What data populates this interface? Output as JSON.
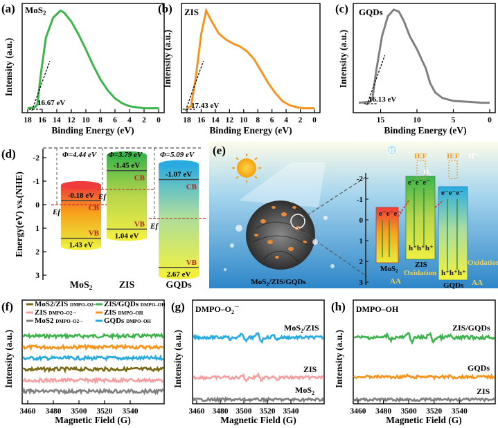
{
  "chart_data": [
    {
      "panel": "a",
      "type": "line",
      "label": "(a)",
      "title": "MoS2",
      "xlabel": "Binding Energy (eV)",
      "ylabel": "Intensity (a.u.)",
      "xlim": [
        18,
        0
      ],
      "ylim": [
        0,
        1
      ],
      "xticks": [
        "18",
        "16",
        "14",
        "12",
        "10",
        "8",
        "6",
        "4",
        "2",
        "0"
      ],
      "annotation": "16.67 eV",
      "cutoff_eV": 16.67,
      "color": "#3cb44b",
      "x": [
        18,
        17,
        16.67,
        16.2,
        15.5,
        14.5,
        13.5,
        13,
        12,
        11,
        10,
        9,
        8,
        7,
        6,
        5,
        4,
        3,
        2,
        1,
        0
      ],
      "y": [
        0.01,
        0.02,
        0.05,
        0.35,
        0.72,
        0.92,
        0.99,
        0.97,
        0.88,
        0.75,
        0.6,
        0.44,
        0.3,
        0.19,
        0.11,
        0.06,
        0.03,
        0.02,
        0.01,
        0.01,
        0.01
      ]
    },
    {
      "panel": "b",
      "type": "line",
      "label": "(b)",
      "title": "ZIS",
      "xlabel": "Binding Energy (eV)",
      "ylabel": "Intensity (a.u.)",
      "xlim": [
        18,
        0
      ],
      "ylim": [
        0,
        1
      ],
      "xticks": [
        "18",
        "16",
        "14",
        "12",
        "10",
        "8",
        "6",
        "4",
        "2",
        "0"
      ],
      "annotation": "17.43 eV",
      "cutoff_eV": 17.43,
      "color": "#f7941d",
      "x": [
        18,
        17.43,
        16.8,
        16,
        15.3,
        14.5,
        13.5,
        12.5,
        11.5,
        10.5,
        9.5,
        8.5,
        7.5,
        6.5,
        5.5,
        4.5,
        3.5,
        2.5,
        1.5,
        0
      ],
      "y": [
        0.01,
        0.03,
        0.3,
        0.75,
        0.99,
        0.88,
        0.76,
        0.7,
        0.66,
        0.63,
        0.58,
        0.5,
        0.38,
        0.26,
        0.16,
        0.08,
        0.04,
        0.02,
        0.01,
        0.01
      ]
    },
    {
      "panel": "c",
      "type": "line",
      "label": "(c)",
      "title": "GQDs",
      "xlabel": "Binding Energy (eV)",
      "ylabel": "Intensity (a.u.)",
      "xlim": [
        18,
        0
      ],
      "ylim": [
        0,
        1
      ],
      "xticks": [
        "15",
        "10",
        "5",
        "0"
      ],
      "annotation": "16.13 eV",
      "cutoff_eV": 16.13,
      "color": "#808080",
      "x": [
        18,
        16.5,
        16.13,
        15.6,
        14.8,
        14,
        13.2,
        12.5,
        11.8,
        11,
        10,
        9.3,
        8.8,
        8.2,
        7.5,
        6.5,
        5,
        3,
        1,
        0
      ],
      "y": [
        0.01,
        0.02,
        0.05,
        0.35,
        0.72,
        0.93,
        1.0,
        0.98,
        0.88,
        0.72,
        0.58,
        0.46,
        0.38,
        0.22,
        0.12,
        0.06,
        0.03,
        0.02,
        0.01,
        0.01
      ]
    },
    {
      "panel": "d",
      "type": "bar",
      "label": "(d)",
      "ylabel": "Energy(eV) vs.(NHE)",
      "ylim": [
        -2.5,
        3
      ],
      "yticks": [
        "-2",
        "-1",
        "0",
        "1",
        "2",
        "3"
      ],
      "categories": [
        "MoS2",
        "ZIS",
        "GQDs"
      ],
      "work_functions": [
        "Φ=4.44 eV",
        "Φ=3.79 eV",
        "Φ=5.09 eV"
      ],
      "series": [
        {
          "name": "CB",
          "values": [
            -0.18,
            -1.45,
            -1.07
          ],
          "labels": [
            "-0.18 eV",
            "-1.45 eV",
            "-1.07 eV"
          ]
        },
        {
          "name": "VB",
          "values": [
            1.43,
            1.04,
            2.67
          ],
          "labels": [
            "1.43 eV",
            "1.04 eV",
            "2.67 eV"
          ]
        },
        {
          "name": "Ef",
          "values": [
            0.0,
            -0.65,
            0.6
          ]
        }
      ],
      "band_labels": {
        "cb": "CB",
        "vb": "VB",
        "ef": "Ef"
      }
    },
    {
      "panel": "f",
      "type": "line",
      "label": "(f)",
      "xlabel": "Magnetic Field (G)",
      "ylabel": "Intensity (a.u.)",
      "xlim": [
        3460,
        3560
      ],
      "xticks": [
        "3460",
        "3480",
        "3500",
        "3520",
        "3540"
      ],
      "legend": [
        {
          "name": "MoS2/ZIS",
          "sub": "DMPO–O2·−",
          "color": "#7a6a14"
        },
        {
          "name": "ZIS/GQDs",
          "sub": "DMPO–OH",
          "color": "#3cb44b"
        },
        {
          "name": "ZIS",
          "sub": "DMPO–O2·−",
          "color": "#f4a0a0"
        },
        {
          "name": "ZIS",
          "sub": "DMPO–OH",
          "color": "#f7941d"
        },
        {
          "name": "MoS2",
          "sub": "DMPO–O2·−",
          "color": "#808080"
        },
        {
          "name": "GQDs",
          "sub": "DMPO–OH",
          "color": "#29abe2"
        }
      ],
      "series_order": [
        "ZIS/GQDs DMPO–OH",
        "ZIS DMPO–OH",
        "GQDs DMPO–OH",
        "MoS2/ZIS DMPO–O2·−",
        "ZIS DMPO–O2·−",
        "MoS2 DMPO–O2·−"
      ]
    },
    {
      "panel": "g",
      "type": "line",
      "label": "(g)",
      "title": "DMPO–O2·−",
      "xlabel": "Magnetic Field (G)",
      "ylabel": "Intensity (a.u.)",
      "xlim": [
        3460,
        3560
      ],
      "xticks": [
        "3460",
        "3480",
        "3500",
        "3520",
        "3540"
      ],
      "series": [
        {
          "name": "MoS2/ZIS",
          "color": "#29abe2",
          "peaks_G": [
            3487,
            3499,
            3511,
            3523
          ]
        },
        {
          "name": "ZIS",
          "color": "#f4a0a0",
          "peaks_G": [
            3487,
            3499,
            3511,
            3523
          ]
        },
        {
          "name": "MoS2",
          "color": "#808080",
          "peaks_G": []
        }
      ]
    },
    {
      "panel": "h",
      "type": "line",
      "label": "(h)",
      "title": "DMPO–OH",
      "xlabel": "Magnetic Field (G)",
      "ylabel": "Intensity (a.u.)",
      "xlim": [
        3460,
        3560
      ],
      "xticks": [
        "3460",
        "3480",
        "3500",
        "3520",
        "3540"
      ],
      "series": [
        {
          "name": "ZIS/GQDs",
          "color": "#3cb44b",
          "peaks_G": [
            3485,
            3500,
            3515,
            3530
          ]
        },
        {
          "name": "GQDs",
          "color": "#f7941d",
          "peaks_G": [
            3485,
            3500,
            3515,
            3530
          ]
        },
        {
          "name": "ZIS",
          "color": "#808080",
          "peaks_G": []
        }
      ]
    }
  ],
  "schematic_e": {
    "label": "(e)",
    "caption": "MoS2/ZIS/GQDs",
    "axis_ticks": [
      "-2",
      "-1",
      "0",
      "1",
      "2",
      "3"
    ],
    "mos2_label": "MoS2",
    "zis_label": "ZIS",
    "gqds_label": "GQDs",
    "electrons": "e⁻e⁻e⁻",
    "holes": "h⁺h⁺h⁺",
    "iep": "IEF",
    "h_plus": "H⁺",
    "h2": "H₂",
    "oxidation": "Oxidation",
    "aa": "AA"
  }
}
